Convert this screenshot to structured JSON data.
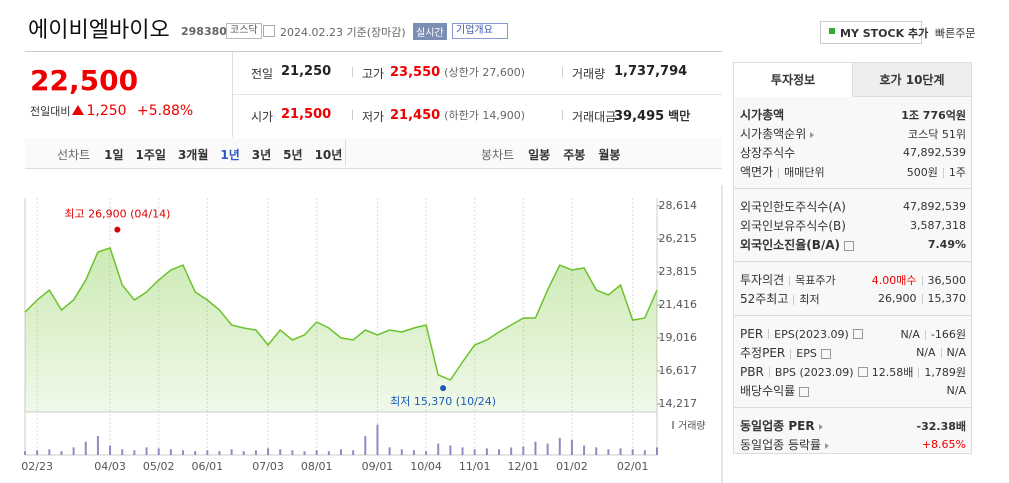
{
  "header": {
    "title": "에이비엘바이오",
    "code": "298380",
    "market": "코스닥",
    "date": "2024.02.23 기준(장마감)",
    "realtime": "실시간",
    "overview": "기업개요",
    "my_stock": "MY STOCK 추가",
    "quick_order": "빠른주문"
  },
  "quote": {
    "price": "22,500",
    "change_label": "전일대비",
    "change": "1,250",
    "change_pct": "+5.88%",
    "stats": [
      {
        "label": "전일",
        "value": "21,250",
        "color": "#222"
      },
      {
        "label": "고가",
        "value": "23,550",
        "color": "#e00",
        "note": "(상한가 27,600)"
      },
      {
        "label": "거래량",
        "value": "1,737,794",
        "color": "#222"
      },
      {
        "label": "시가",
        "value": "21,500",
        "color": "#e00"
      },
      {
        "label": "저가",
        "value": "21,450",
        "color": "#e00",
        "note": "(하한가 14,900)"
      },
      {
        "label": "거래대금",
        "value": "39,495",
        "color": "#222",
        "unit": "백만"
      }
    ]
  },
  "periods": {
    "line_label": "선차트",
    "line": [
      "1일",
      "1주일",
      "3개월",
      "1년",
      "3년",
      "5년",
      "10년"
    ],
    "selected": 3,
    "candle_label": "봉차트",
    "candle": [
      "일봉",
      "주봉",
      "월봉"
    ]
  },
  "chart_data": {
    "type": "line",
    "color": "#6cc22a",
    "categories": [
      null,
      "02/23",
      null,
      null,
      null,
      null,
      null,
      "04/03",
      null,
      null,
      null,
      "05/02",
      null,
      null,
      null,
      "06/01",
      null,
      null,
      null,
      null,
      "07/03",
      null,
      null,
      null,
      "08/01",
      null,
      null,
      null,
      null,
      "09/01",
      null,
      null,
      null,
      "10/04",
      null,
      null,
      null,
      "11/01",
      null,
      null,
      null,
      "12/01",
      null,
      null,
      null,
      "01/02",
      null,
      null,
      null,
      null,
      "02/01",
      null,
      null
    ],
    "values": [
      20900,
      21780,
      22500,
      21050,
      21780,
      23230,
      25270,
      25560,
      22870,
      21780,
      22360,
      23230,
      23960,
      24320,
      22360,
      21780,
      21050,
      19960,
      19740,
      19600,
      18510,
      19600,
      18870,
      19240,
      20180,
      19740,
      19020,
      18870,
      19600,
      19240,
      19600,
      19450,
      19740,
      19960,
      16330,
      15960,
      17270,
      18510,
      18870,
      19450,
      19960,
      20470,
      20470,
      22510,
      24320,
      23960,
      24110,
      22510,
      22140,
      22870,
      20320,
      20470,
      22500
    ],
    "ylim": [
      14217,
      28614
    ],
    "yticks": [
      {
        "value": 14217,
        "label": "14,217"
      },
      {
        "value": 16617,
        "label": "16,617"
      },
      {
        "value": 19016,
        "label": "19,016"
      },
      {
        "value": 21416,
        "label": "21,416"
      },
      {
        "value": 23815,
        "label": "23,815"
      },
      {
        "value": 26215,
        "label": "26,215"
      },
      {
        "value": 28614,
        "label": "28,614"
      }
    ],
    "annotations": [
      {
        "text": "최고 26,900 (04/14)",
        "value": 26900,
        "x": 7.6,
        "color": "#d00"
      },
      {
        "text": "최저 15,370 (10/24)",
        "value": 15370,
        "x": 34.4,
        "color": "#1a5bb5"
      }
    ],
    "volume": {
      "name": "거래량",
      "color": "#8f8ac0",
      "y2lim": [
        0,
        40
      ],
      "values": [
        4,
        5,
        6,
        4,
        8,
        14,
        20,
        10,
        6,
        5,
        8,
        7,
        6,
        5,
        4,
        5,
        4,
        6,
        4,
        5,
        7,
        6,
        5,
        4,
        5,
        4,
        6,
        5,
        20,
        32,
        8,
        6,
        5,
        4,
        12,
        10,
        8,
        6,
        7,
        6,
        8,
        9,
        14,
        12,
        18,
        16,
        10,
        8,
        6,
        7,
        6,
        5,
        8
      ]
    }
  },
  "info": {
    "tabs": [
      "투자정보",
      "호가 10단계"
    ],
    "groups": [
      [
        {
          "labels": [
            "시가총액"
          ],
          "values": [
            "1조 776억원"
          ],
          "bold": true
        },
        {
          "labels": [
            "시가총액순위"
          ],
          "arrow": true,
          "values": [
            "코스닥 51위"
          ]
        },
        {
          "labels": [
            "상장주식수"
          ],
          "values": [
            "47,892,539"
          ]
        },
        {
          "labels": [
            "액면가",
            "매매단위"
          ],
          "values": [
            "500원",
            "1주"
          ]
        }
      ],
      [
        {
          "labels": [
            "외국인한도주식수(A)"
          ],
          "values": [
            "47,892,539"
          ]
        },
        {
          "labels": [
            "외국인보유주식수(B)"
          ],
          "values": [
            "3,587,318"
          ]
        },
        {
          "labels": [
            "외국인소진율(B/A)"
          ],
          "help": true,
          "bold": true,
          "values": [
            "7.49%"
          ]
        }
      ],
      [
        {
          "labels": [
            "투자의견",
            "목표주가"
          ],
          "values": [
            "4.00매수",
            "36,500"
          ],
          "colors": [
            "#e00",
            "#333"
          ]
        },
        {
          "labels": [
            "52주최고",
            "최저"
          ],
          "values": [
            "26,900",
            "15,370"
          ]
        }
      ],
      [
        {
          "labels": [
            "PER",
            "EPS(2023.09)"
          ],
          "help": true,
          "values": [
            "N/A",
            "-166원"
          ]
        },
        {
          "labels": [
            "추정PER",
            "EPS"
          ],
          "help": true,
          "values": [
            "N/A",
            "N/A"
          ]
        },
        {
          "labels": [
            "PBR",
            "BPS (2023.09)"
          ],
          "help": true,
          "values": [
            "12.58배",
            "1,789원"
          ]
        },
        {
          "labels": [
            "배당수익률"
          ],
          "help": true,
          "values": [
            "N/A"
          ]
        }
      ],
      [
        {
          "labels": [
            "동일업종 PER"
          ],
          "arrow": true,
          "bold": true,
          "values": [
            "-32.38배"
          ]
        },
        {
          "labels": [
            "동일업종 등락률"
          ],
          "arrow": true,
          "values": [
            "+8.65%"
          ],
          "colors": [
            "#e00"
          ]
        }
      ]
    ]
  }
}
